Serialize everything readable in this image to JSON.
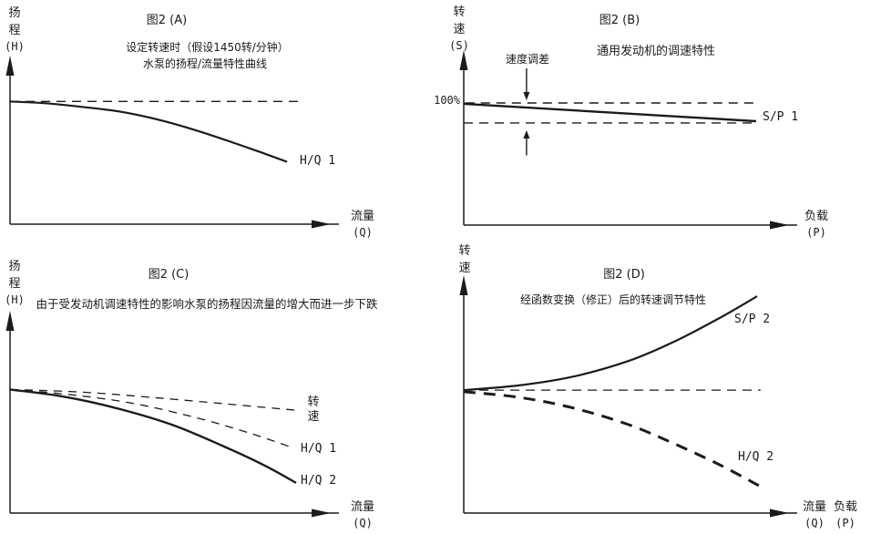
{
  "page": {
    "bg": "#ffffff",
    "ink": "#1b1b1b"
  },
  "chart_data": [
    {
      "id": "A",
      "type": "line",
      "title": "图2 (A)",
      "subtitle_lines": [
        "设定转速时（假设1450转/分钟）",
        "水泵的扬程/流量特性曲线"
      ],
      "ylabel": "扬程(H)",
      "ylabel_lines": [
        "扬",
        "程",
        "(H)"
      ],
      "xlabel": "流量(Q)",
      "xlabel_lines": [
        "流量",
        "(Q)"
      ],
      "axes_numeric": false,
      "xlim": [
        0,
        100
      ],
      "ylim": [
        0,
        100
      ],
      "series": [
        {
          "name": "rated-head-reference",
          "label": "",
          "style": "dashed",
          "width": 1.4,
          "dash": "10 7",
          "x": [
            0,
            90.6
          ],
          "y": [
            74,
            74
          ]
        },
        {
          "name": "H/Q 1",
          "label": "H/Q 1",
          "style": "solid",
          "width": 2.2,
          "dash": "",
          "x": [
            0,
            11.1,
            22.4,
            33.8,
            45.2,
            56.5,
            67.9,
            77.8,
            86.4
          ],
          "y": [
            74.0,
            72.9,
            70.7,
            68.0,
            63.5,
            57.5,
            50.3,
            43.6,
            37.6
          ]
        }
      ]
    },
    {
      "id": "B",
      "type": "line",
      "title": "图2 (B)",
      "subtitle_lines": [
        "通用发动机的调速特性"
      ],
      "ylabel": "转速(S)",
      "ylabel_lines": [
        "转",
        "速",
        "(S)"
      ],
      "xlabel": "负载(P)",
      "xlabel_lines": [
        "负载",
        "(P)"
      ],
      "ytick_labels": [
        "100%"
      ],
      "annotation": {
        "text": "速度调差"
      },
      "droop_arrows": [
        {
          "x": 19.3,
          "from": 91.0,
          "to": 72.5,
          "dir": "down"
        },
        {
          "x": 19.3,
          "from": 40.5,
          "to": 55.0,
          "dir": "up"
        }
      ],
      "axes_numeric": false,
      "xlim": [
        0,
        100
      ],
      "ylim": [
        0,
        100
      ],
      "series": [
        {
          "name": "100%-reference",
          "label": "",
          "style": "dashed",
          "width": 1.4,
          "dash": "10 7",
          "x": [
            0.5,
            89.9
          ],
          "y": [
            70.9,
            70.9
          ]
        },
        {
          "name": "droop-lower-reference",
          "label": "",
          "style": "dashed",
          "width": 1.4,
          "dash": "10 7",
          "x": [
            0,
            89.9
          ],
          "y": [
            59.3,
            59.3
          ]
        },
        {
          "name": "S/P 1",
          "label": "S/P 1",
          "style": "solid",
          "width": 2.4,
          "dash": "",
          "x": [
            0,
            89.9
          ],
          "y": [
            70.4,
            60.3
          ]
        }
      ]
    },
    {
      "id": "C",
      "type": "line",
      "title": "图2 (C)",
      "subtitle_lines": [
        "由于受发动机调速特性的影响水泵的扬程因流量的增大而进一步下跌"
      ],
      "ylabel": "扬程(H)",
      "ylabel_lines": [
        "扬",
        "程",
        "(H)"
      ],
      "xlabel": "流量(Q)",
      "xlabel_lines": [
        "流量",
        "(Q)"
      ],
      "axes_numeric": false,
      "xlim": [
        0,
        100
      ],
      "ylim": [
        0,
        100
      ],
      "series": [
        {
          "name": "转速",
          "label": "转速",
          "label_lines": [
            "转",
            "速"
          ],
          "style": "dashed",
          "width": 1.3,
          "dash": "9 7",
          "x": [
            0,
            22.4,
            45.2,
            67.9,
            90.1
          ],
          "y": [
            61.9,
            60.6,
            57.8,
            54.6,
            51.4
          ]
        },
        {
          "name": "H/Q 1",
          "label": "H/Q 1",
          "style": "dashed",
          "width": 1.3,
          "dash": "9 7",
          "x": [
            0,
            19.6,
            39.5,
            59.4,
            75.0,
            88.4
          ],
          "y": [
            61.9,
            59.2,
            54.6,
            47.2,
            39.9,
            32.6
          ]
        },
        {
          "name": "H/Q 2",
          "label": "H/Q 2",
          "style": "solid",
          "width": 2.4,
          "dash": "",
          "x": [
            0,
            16.8,
            33.8,
            50.9,
            66.5,
            79.3,
            89.2
          ],
          "y": [
            61.9,
            58.3,
            52.3,
            44.0,
            33.5,
            23.9,
            15.1
          ]
        }
      ]
    },
    {
      "id": "D",
      "type": "line",
      "title": "图2 (D)",
      "subtitle_lines": [
        "经函数变换（修正）后的转速调节特性"
      ],
      "ylabel": "转速",
      "ylabel_lines": [
        "转",
        "速"
      ],
      "xlabel": "流量(Q) 负载(P)",
      "xlabel_lines": [
        "流量",
        "(Q)"
      ],
      "xlabel2_lines": [
        "负载",
        "(P)"
      ],
      "axes_numeric": false,
      "xlim": [
        0,
        100
      ],
      "ylim": [
        0,
        100
      ],
      "series": [
        {
          "name": "set-speed-reference",
          "label": "",
          "style": "dashed",
          "width": 1.2,
          "dash": "10 7",
          "x": [
            0,
            91.3
          ],
          "y": [
            52.3,
            52.3
          ]
        },
        {
          "name": "S/P 2",
          "label": "S/P 2",
          "style": "solid",
          "width": 2.2,
          "dash": "",
          "x": [
            0,
            17.1,
            33.9,
            50.7,
            64.7,
            78.7,
            90.2
          ],
          "y": [
            52.3,
            54.3,
            58.1,
            64.7,
            72.9,
            83.0,
            92.2
          ]
        },
        {
          "name": "H/Q 2",
          "label": "H/Q 2",
          "style": "dashed",
          "width": 3.0,
          "dash": "13 9",
          "x": [
            0,
            17.1,
            33.9,
            50.7,
            64.7,
            78.7,
            90.8
          ],
          "y": [
            51.6,
            49.2,
            44.6,
            37.6,
            29.5,
            20.5,
            11.6
          ]
        }
      ]
    }
  ]
}
